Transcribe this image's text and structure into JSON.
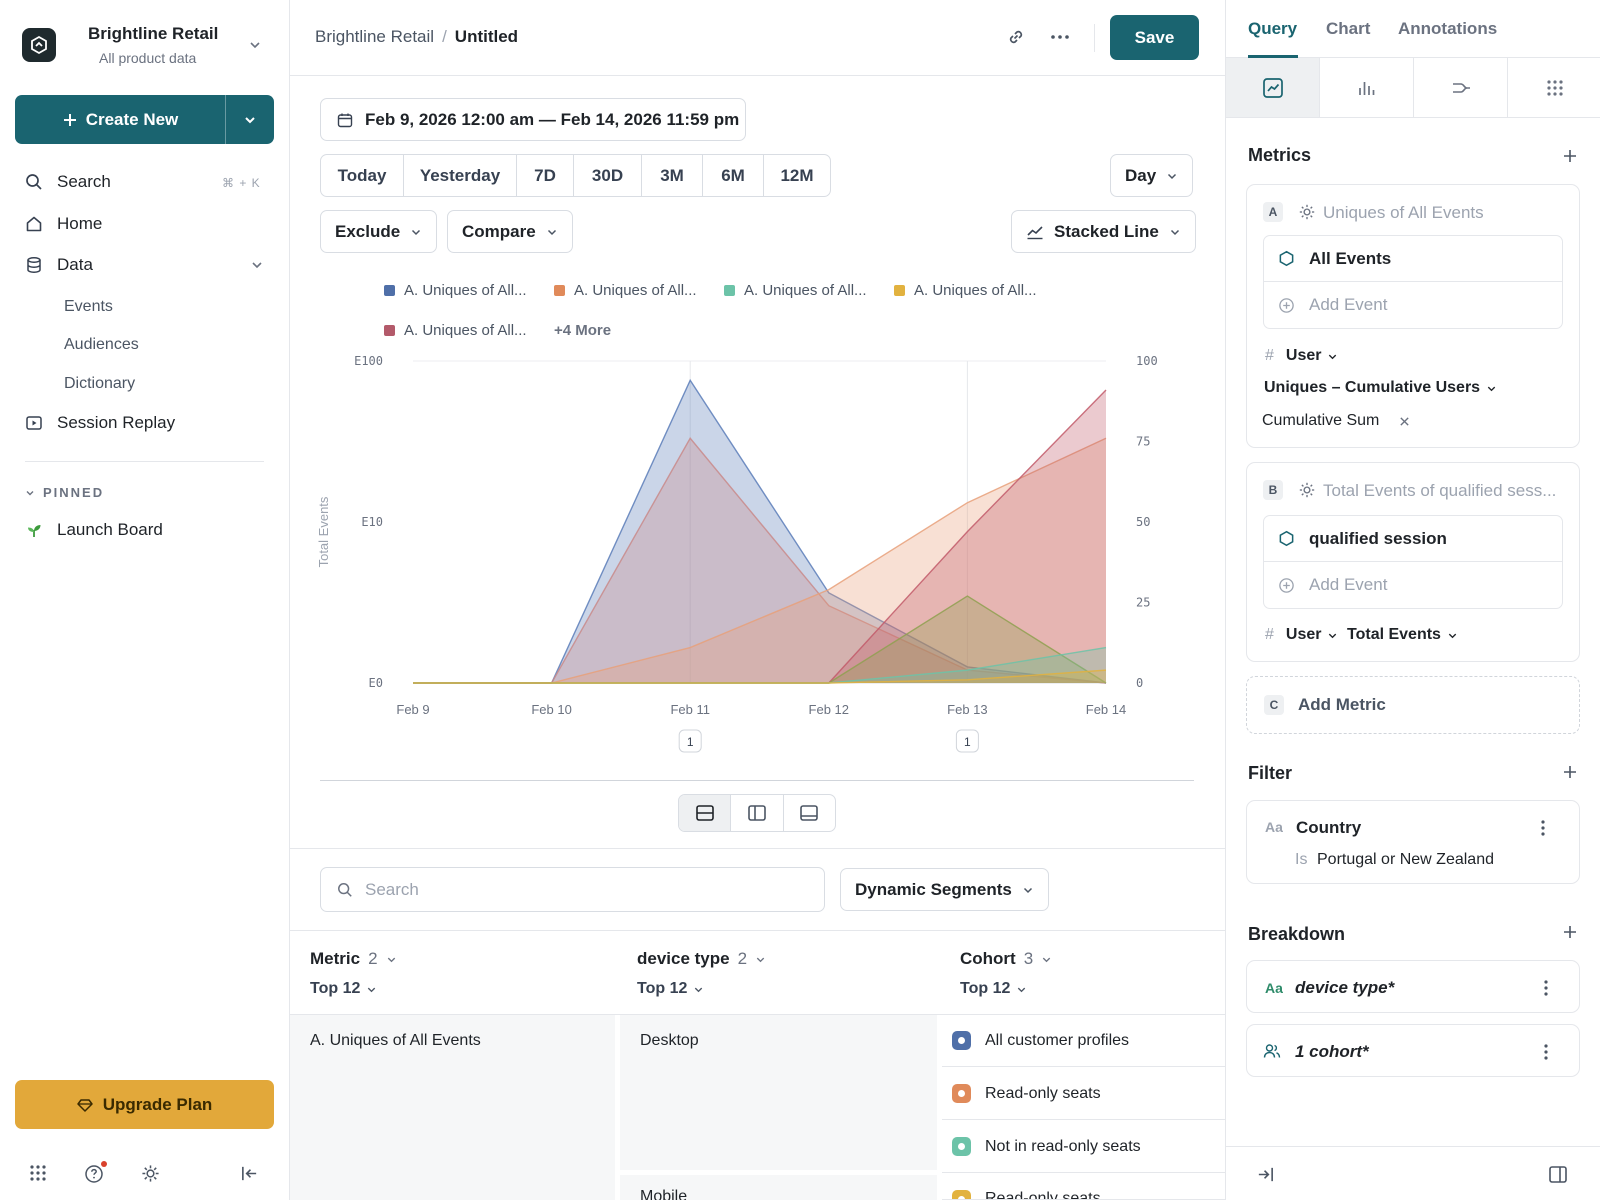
{
  "brand": {
    "name": "Brightline Retail",
    "subtitle": "All product data"
  },
  "sidebar": {
    "create_label": "Create New",
    "search_label": "Search",
    "search_shortcut": "⌘ + K",
    "items": [
      {
        "label": "Home",
        "icon": "home-icon"
      },
      {
        "label": "Data",
        "icon": "database-icon"
      },
      {
        "label": "Session Replay",
        "icon": "replay-icon"
      }
    ],
    "data_children": [
      "Events",
      "Audiences",
      "Dictionary"
    ],
    "pinned_heading": "PINNED",
    "pinned_items": [
      {
        "label": "Launch Board",
        "icon": "sprout-icon"
      }
    ],
    "upgrade_label": "Upgrade Plan"
  },
  "header": {
    "breadcrumb_root": "Brightline Retail",
    "breadcrumb_sep": "/",
    "breadcrumb_current": "Untitled",
    "save_label": "Save"
  },
  "controls": {
    "date_range": "Feb 9, 2026 12:00 am — Feb 14, 2026 11:59 pm",
    "ranges": [
      "Today",
      "Yesterday",
      "7D",
      "30D",
      "3M",
      "6M",
      "12M"
    ],
    "granularity": "Day",
    "exclude_label": "Exclude",
    "compare_label": "Compare",
    "chart_type_label": "Stacked Line"
  },
  "legend": {
    "items": [
      {
        "label": "A. Uniques of All...",
        "color": "#4f6fa8"
      },
      {
        "label": "A. Uniques of All...",
        "color": "#e08a5a"
      },
      {
        "label": "A. Uniques of All...",
        "color": "#6cc3a8"
      },
      {
        "label": "A. Uniques of All...",
        "color": "#e2b23f"
      },
      {
        "label": "A. Uniques of All...",
        "color": "#b35a6a"
      }
    ],
    "more_label": "+4 More"
  },
  "chart_data": {
    "type": "area",
    "stacked": false,
    "x": [
      "Feb 9",
      "Feb 10",
      "Feb 11",
      "Feb 12",
      "Feb 13",
      "Feb 14"
    ],
    "ylabel": "Total Events",
    "y_left_ticks": [
      "E100",
      "E10",
      "E0"
    ],
    "y_right_ticks": [
      "0",
      "25",
      "50",
      "75",
      "100"
    ],
    "y_right_range": [
      0,
      100
    ],
    "series": [
      {
        "color": "#5b7db8",
        "values": [
          0,
          0,
          94,
          28,
          5,
          0
        ]
      },
      {
        "color": "#c98a8a",
        "values": [
          0,
          0,
          76,
          24,
          4,
          0
        ]
      },
      {
        "color": "#e8a07a",
        "values": [
          0,
          0,
          11,
          29,
          56,
          76
        ]
      },
      {
        "color": "#c25a6a",
        "values": [
          0,
          0,
          0,
          0,
          47,
          91
        ]
      },
      {
        "color": "#8fa050",
        "values": [
          0,
          0,
          0,
          0,
          27,
          0
        ]
      },
      {
        "color": "#6cc3a8",
        "values": [
          0,
          0,
          0,
          0,
          4,
          11
        ]
      },
      {
        "color": "#e2b23f",
        "values": [
          0,
          0,
          0,
          0,
          1,
          4
        ]
      }
    ],
    "annotation_markers": [
      {
        "x": "Feb 11",
        "label": "1"
      },
      {
        "x": "Feb 13",
        "label": "1"
      }
    ]
  },
  "table": {
    "search_placeholder": "Search",
    "segments_label": "Dynamic Segments",
    "columns": [
      {
        "label": "Metric",
        "count": "2",
        "sub": "Top 12"
      },
      {
        "label": "device type",
        "count": "2",
        "sub": "Top 12"
      },
      {
        "label": "Cohort",
        "count": "3",
        "sub": "Top 12"
      }
    ],
    "metric_cell": "A. Uniques of All Events",
    "device_cells": [
      "Desktop",
      "Mobile"
    ],
    "cohorts": [
      {
        "label": "All customer profiles",
        "color": "#4f6fa8"
      },
      {
        "label": "Read-only seats",
        "color": "#e08a5a"
      },
      {
        "label": "Not in read-only seats",
        "color": "#6cc3a8"
      },
      {
        "label": "Read-only seats",
        "color": "#e2b23f"
      }
    ]
  },
  "panel": {
    "tabs": [
      "Query",
      "Chart",
      "Annotations"
    ],
    "metrics_title": "Metrics",
    "metric_a": {
      "letter": "A",
      "name": "Uniques of All Events",
      "event": "All Events",
      "add_event": "Add Event",
      "hash": "#",
      "unit": "User",
      "measure": "Uniques – Cumulative Users",
      "modifier": "Cumulative Sum"
    },
    "metric_b": {
      "letter": "B",
      "name": "Total Events of qualified sess...",
      "event": "qualified session",
      "add_event": "Add Event",
      "hash": "#",
      "unit": "User",
      "measure": "Total Events"
    },
    "add_metric": {
      "letter": "C",
      "label": "Add Metric"
    },
    "filter_title": "Filter",
    "filter": {
      "type": "Aa",
      "property": "Country",
      "op": "Is",
      "value": "Portugal or New Zealand"
    },
    "breakdown_title": "Breakdown",
    "breakdowns": [
      {
        "type": "Aa",
        "label": "device type*"
      },
      {
        "label": "1 cohort*"
      }
    ]
  }
}
